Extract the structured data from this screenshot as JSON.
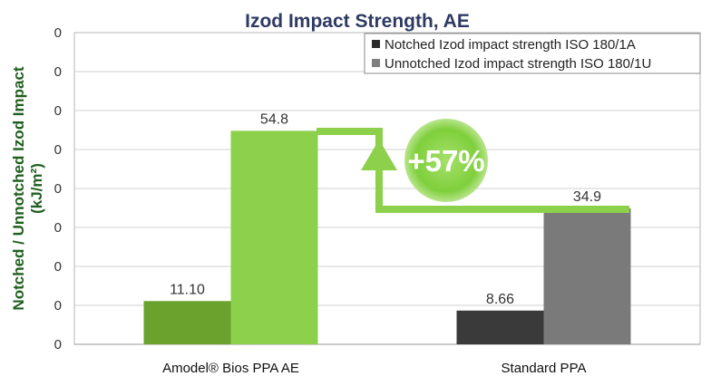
{
  "chart_data": {
    "type": "bar",
    "title": "Izod Impact Strength, AE",
    "ylabel": "Notched / Unnotched Izod Impact",
    "ylabel_unit": "(kJ/m²)",
    "ylim": [
      0,
      80
    ],
    "yticks": [
      "0",
      "0",
      "0",
      "0",
      "0",
      "0",
      "0",
      "0",
      "0"
    ],
    "grid": true,
    "legend_position": "top-right",
    "categories": [
      "Amodel® Bios PPA AE",
      "Standard PPA"
    ],
    "series": [
      {
        "name": "Notched Izod impact strength ISO 180/1A",
        "values": [
          11.1,
          8.66
        ],
        "labels": [
          "11.10",
          "8.66"
        ],
        "colors": [
          "#6aa22d",
          "#3a3a3a"
        ],
        "legend_color": "#2b2b2b"
      },
      {
        "name": "Unnotched Izod impact strength ISO 180/1U",
        "values": [
          54.8,
          34.9
        ],
        "labels": [
          "54.8",
          "34.9"
        ],
        "colors": [
          "#8dd04b",
          "#7a7a7a"
        ],
        "legend_color": "#7f7f7f"
      }
    ],
    "annotation": {
      "text": "+57%",
      "arrow_color": "#8dd04b",
      "badge_color": "#7fcf3c"
    }
  }
}
